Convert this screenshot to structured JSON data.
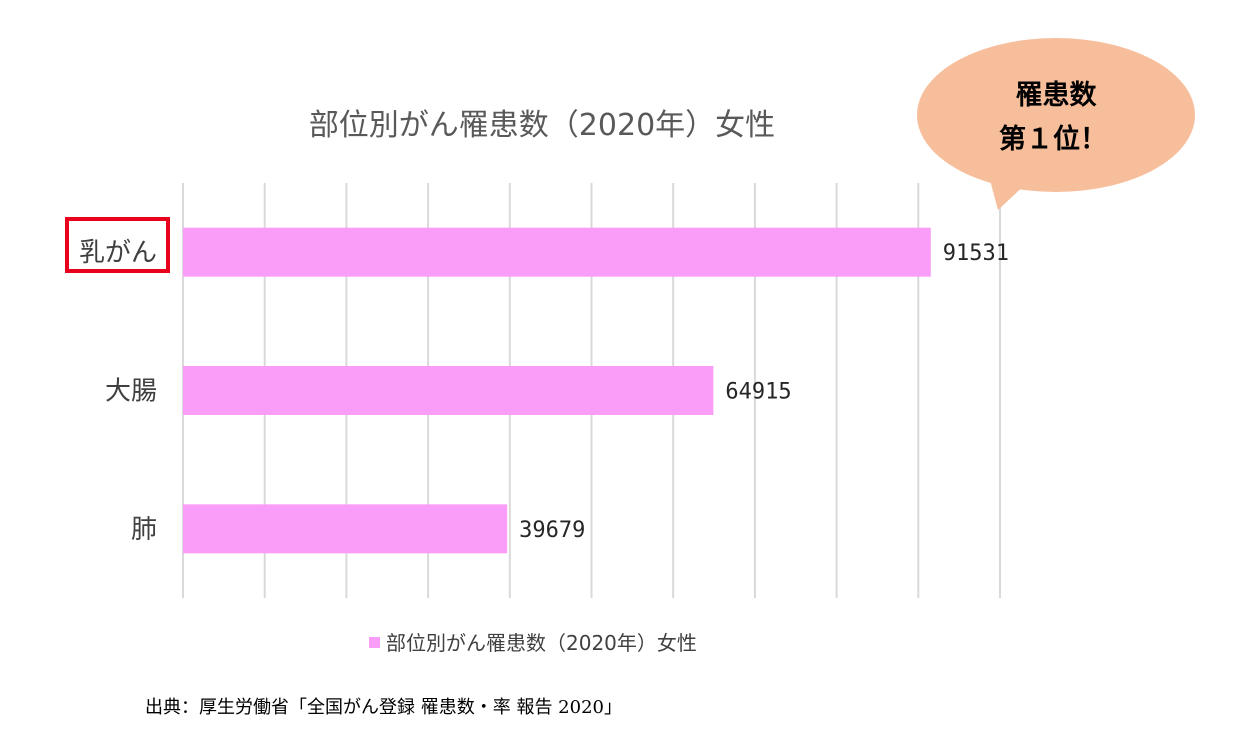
{
  "chart_data": {
    "type": "bar",
    "orientation": "horizontal",
    "title": "部位別がん罹患数（2020年）女性",
    "categories": [
      "乳がん",
      "大腸",
      "肺"
    ],
    "series": [
      {
        "name": "部位別がん罹患数（2020年）女性",
        "values": [
          91531,
          64915,
          39679
        ]
      }
    ],
    "data_labels": [
      "91531",
      "64915",
      "39679"
    ],
    "xlim": [
      0,
      100000
    ],
    "grid": true,
    "legend_position": "bottom",
    "highlighted_category": "乳がん",
    "colors": {
      "bar": "#f99df9",
      "highlight_box": "#e8001c",
      "callout": "#f7be9b",
      "grid": "#d9d9d9"
    }
  },
  "callout": {
    "line1": "罹患数",
    "line2": "第１位！"
  },
  "source": "出典：厚生労働省「全国がん登録 罹患数・率 報告 2020」"
}
